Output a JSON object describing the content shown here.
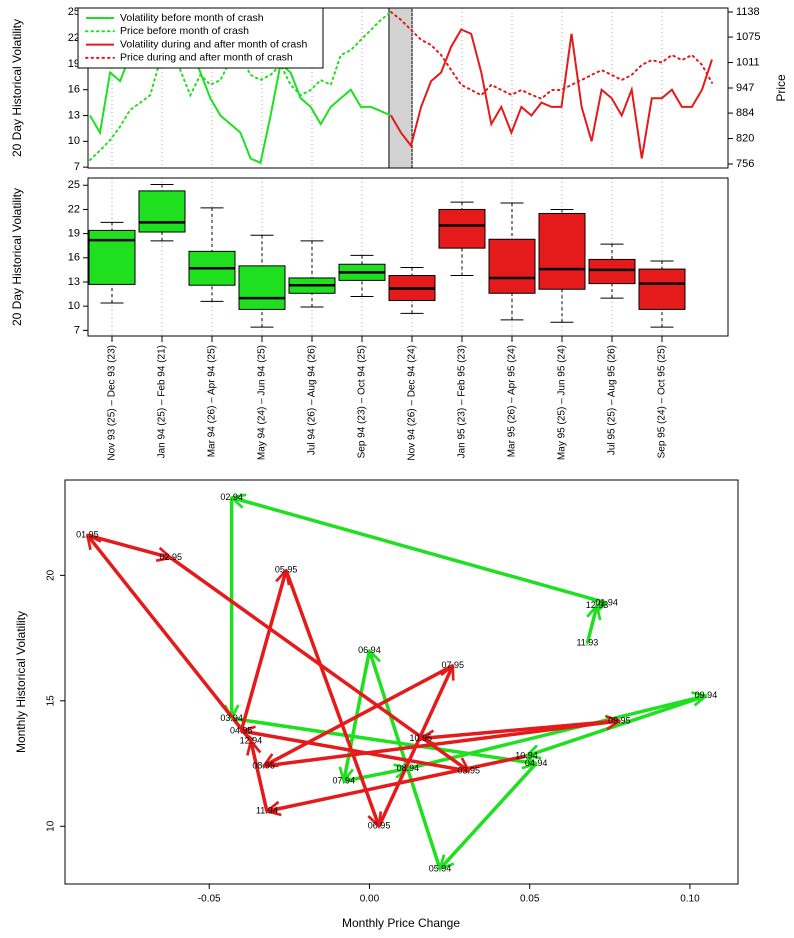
{
  "chart_data": [
    {
      "type": "line",
      "ylabel": "20 Day Historical Volatility",
      "y2label": "Price",
      "ylim": [
        6.9,
        25.5
      ],
      "yticks": [
        7,
        10,
        13,
        16,
        19,
        22,
        25
      ],
      "y2lim": [
        746,
        1148
      ],
      "y2ticks": [
        756,
        820,
        884,
        947,
        1011,
        1075,
        1138
      ],
      "legend": "top-left",
      "series": [
        {
          "name": "Volatility before month of crash",
          "color": "#1fe01f",
          "style": "solid",
          "values": [
            13,
            11,
            18,
            17,
            20,
            22,
            23,
            24,
            25,
            24.5,
            21,
            18,
            15,
            13,
            12,
            11,
            8,
            7.5,
            13,
            19,
            18,
            15,
            14,
            12,
            14,
            15,
            16,
            14,
            14,
            13.5,
            13,
            null,
            null,
            null,
            null,
            null,
            null,
            null,
            null,
            null,
            null,
            null,
            null,
            null,
            null,
            null,
            null,
            null,
            null,
            null,
            null,
            null,
            null,
            null,
            null,
            null,
            null,
            null,
            null,
            null,
            null,
            null,
            null
          ]
        },
        {
          "name": "Price before month of crash",
          "color": "#1fe01f",
          "style": "dotted",
          "axis": "y2",
          "values": [
            766,
            790,
            816,
            850,
            892,
            910,
            929,
            1017,
            1055,
            992,
            929,
            980,
            955,
            967,
            1017,
            1030,
            980,
            967,
            980,
            1005,
            955,
            929,
            942,
            967,
            955,
            1030,
            1042,
            1068,
            1093,
            1118,
            1138,
            null,
            null,
            null,
            null,
            null,
            null,
            null,
            null,
            null,
            null,
            null,
            null,
            null,
            null,
            null,
            null,
            null,
            null,
            null,
            null,
            null,
            null,
            null,
            null,
            null,
            null,
            null,
            null,
            null,
            null,
            null,
            null
          ]
        },
        {
          "name": "Volatility during and after month of crash",
          "color": "#e51a1a",
          "style": "solid",
          "values": [
            null,
            null,
            null,
            null,
            null,
            null,
            null,
            null,
            null,
            null,
            null,
            null,
            null,
            null,
            null,
            null,
            null,
            null,
            null,
            null,
            null,
            null,
            null,
            null,
            null,
            null,
            null,
            null,
            null,
            null,
            13,
            11,
            9.5,
            14,
            17,
            18,
            21,
            23,
            22.5,
            18,
            12,
            14,
            11,
            14,
            13,
            14.5,
            14,
            14,
            22.5,
            14,
            10,
            16,
            15,
            13,
            16,
            8,
            15,
            15,
            16,
            14,
            14,
            16,
            19.5
          ]
        },
        {
          "name": "Price during and after month of crash",
          "color": "#e51a1a",
          "style": "dotted",
          "axis": "y2",
          "values": [
            null,
            null,
            null,
            null,
            null,
            null,
            null,
            null,
            null,
            null,
            null,
            null,
            null,
            null,
            null,
            null,
            null,
            null,
            null,
            null,
            null,
            null,
            null,
            null,
            null,
            null,
            null,
            null,
            null,
            null,
            1138,
            1118,
            1093,
            1068,
            1055,
            1030,
            992,
            955,
            942,
            929,
            955,
            942,
            930,
            942,
            930,
            920,
            942,
            942,
            955,
            967,
            980,
            992,
            980,
            967,
            980,
            1005,
            1017,
            1011,
            1030,
            1017,
            1030,
            1005,
            960
          ]
        }
      ]
    },
    {
      "type": "box",
      "ylabel": "20 Day Historical Volatility",
      "ylim": [
        6.3,
        25.9
      ],
      "yticks": [
        7,
        10,
        13,
        16,
        19,
        22,
        25
      ],
      "categories": [
        "Nov 93 (25) – Dec 93 (23)",
        "Jan 94 (25) – Feb 94 (21)",
        "Mar 94 (26) – Apr 94 (25)",
        "May 94 (24) – Jun 94 (25)",
        "Jul 94 (26) – Aug 94 (26)",
        "Sep 94 (23) – Oct 94 (25)",
        "Nov 94 (26) – Dec 94 (24)",
        "Jan 95 (23) – Feb 95 (23)",
        "Mar 95 (26) – Apr 95 (24)",
        "May 95 (25) – Jun 95 (24)",
        "Jul 95 (25) – Aug 95 (26)",
        "Sep 95 (24) – Oct 95 (25)"
      ],
      "colors": [
        "#1fe01f",
        "#1fe01f",
        "#1fe01f",
        "#1fe01f",
        "#1fe01f",
        "#1fe01f",
        "#e51a1a",
        "#e51a1a",
        "#e51a1a",
        "#e51a1a",
        "#e51a1a",
        "#e51a1a"
      ],
      "low": [
        10.4,
        18.1,
        10.6,
        7.4,
        9.9,
        11.2,
        9.1,
        13.8,
        8.3,
        8.0,
        11.0,
        7.4
      ],
      "q1": [
        12.7,
        19.2,
        12.6,
        9.6,
        11.6,
        13.2,
        10.7,
        17.2,
        11.6,
        12.1,
        12.8,
        9.6
      ],
      "median": [
        18.2,
        20.4,
        14.7,
        11.0,
        12.6,
        14.2,
        12.2,
        20.0,
        13.5,
        14.6,
        14.5,
        12.8
      ],
      "q3": [
        19.4,
        24.3,
        16.8,
        15.0,
        13.5,
        15.2,
        13.8,
        22.0,
        18.3,
        21.5,
        15.8,
        14.6
      ],
      "high": [
        20.4,
        25.1,
        22.2,
        18.8,
        18.1,
        16.3,
        14.8,
        22.9,
        22.8,
        22.0,
        17.7,
        15.6
      ]
    },
    {
      "type": "scatter",
      "xlabel": "Monthly Price Change",
      "ylabel": "Monthly Historical Volatility",
      "xlim": [
        -0.095,
        0.115
      ],
      "ylim": [
        7.7,
        23.8
      ],
      "xticks": [
        -0.05,
        {
          "value": 0,
          "label": "0.00"
        },
        0.05,
        {
          "value": 0.1,
          "label": "0.10"
        }
      ],
      "yticks": [
        10,
        15,
        20
      ],
      "series": [
        {
          "color": "#1fe01f",
          "labels": [
            "11.93",
            "12.93",
            "01.94",
            "02.94",
            "03.94",
            "04.94",
            "05.94",
            "06.94",
            "07.94",
            "08.94",
            "09.94",
            "10.94"
          ],
          "x": [
            0.068,
            0.071,
            0.074,
            -0.043,
            -0.043,
            0.052,
            0.022,
            0.0,
            -0.008,
            0.012,
            0.105,
            0.049
          ],
          "values": [
            17.3,
            18.8,
            18.9,
            23.1,
            14.3,
            12.5,
            8.3,
            17.0,
            11.8,
            12.3,
            15.2,
            12.8
          ]
        },
        {
          "color": "#e51a1a",
          "labels": [
            "11.94",
            "12.94",
            "01.95",
            "02.95",
            "03.95",
            "04.95",
            "05.95",
            "06.95",
            "07.95",
            "08.95",
            "09.95",
            "10.95"
          ],
          "x": [
            -0.032,
            -0.037,
            -0.088,
            -0.062,
            0.031,
            -0.04,
            -0.026,
            0.003,
            0.026,
            -0.033,
            0.078,
            0.016
          ],
          "values": [
            10.6,
            13.4,
            21.6,
            20.7,
            12.2,
            13.8,
            20.2,
            10.0,
            16.4,
            12.4,
            14.2,
            13.5
          ]
        }
      ]
    }
  ]
}
